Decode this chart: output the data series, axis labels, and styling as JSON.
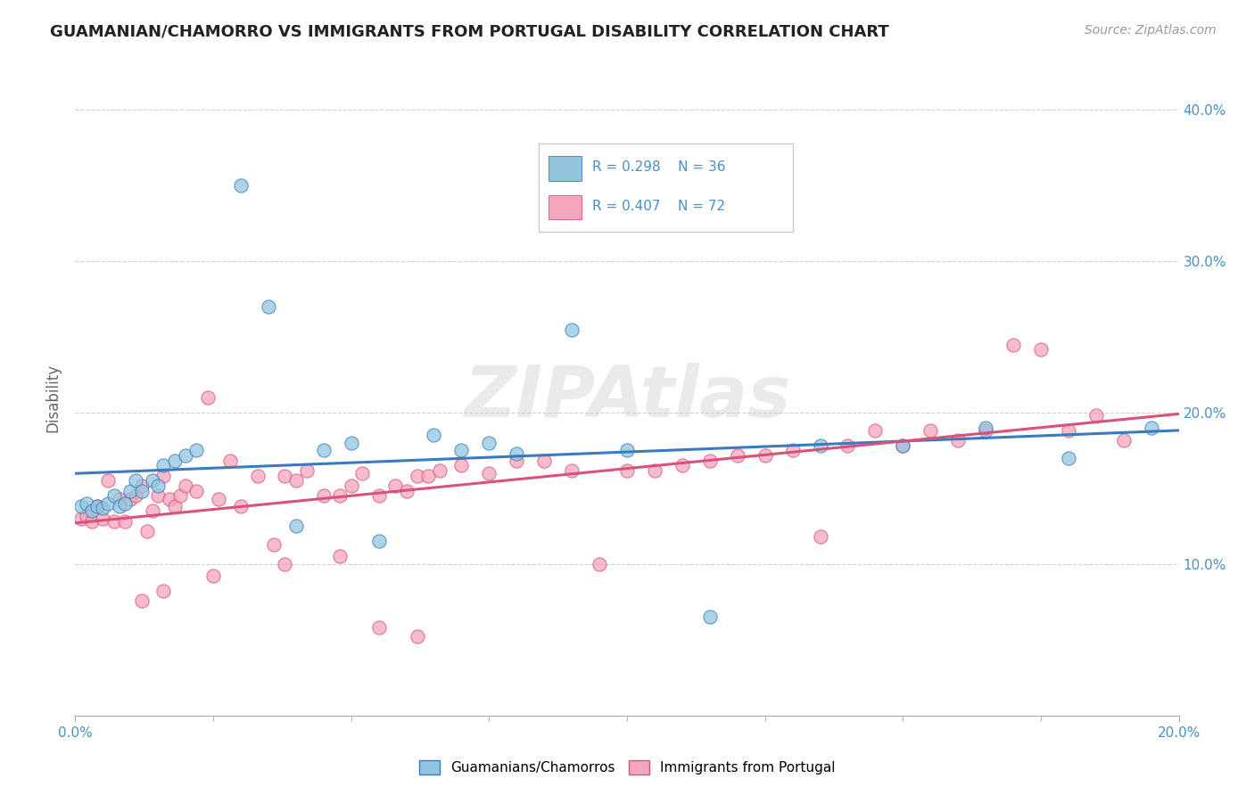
{
  "title": "GUAMANIAN/CHAMORRO VS IMMIGRANTS FROM PORTUGAL DISABILITY CORRELATION CHART",
  "source": "Source: ZipAtlas.com",
  "ylabel_label": "Disability",
  "xlim": [
    0.0,
    0.2
  ],
  "ylim": [
    0.0,
    0.42
  ],
  "xticks_major": [
    0.0,
    0.2
  ],
  "xticks_minor": [
    0.025,
    0.05,
    0.075,
    0.1,
    0.125,
    0.15,
    0.175
  ],
  "yticks": [
    0.1,
    0.2,
    0.3,
    0.4
  ],
  "ytick_labels": [
    "10.0%",
    "20.0%",
    "30.0%",
    "40.0%"
  ],
  "xtick_labels_major": [
    "0.0%",
    "20.0%"
  ],
  "legend_R1": "R = 0.298",
  "legend_N1": "N = 36",
  "legend_R2": "R = 0.407",
  "legend_N2": "N = 72",
  "color_blue": "#92c5de",
  "color_pink": "#f4a6bc",
  "line_blue": "#3a7abf",
  "line_pink": "#d9527a",
  "text_color": "#4a90c4",
  "watermark": "ZIPAtlas",
  "blue_scatter_x": [
    0.001,
    0.002,
    0.003,
    0.004,
    0.005,
    0.006,
    0.007,
    0.008,
    0.009,
    0.01,
    0.011,
    0.012,
    0.014,
    0.015,
    0.016,
    0.018,
    0.02,
    0.022,
    0.03,
    0.035,
    0.04,
    0.045,
    0.05,
    0.055,
    0.065,
    0.07,
    0.075,
    0.08,
    0.09,
    0.1,
    0.115,
    0.135,
    0.15,
    0.165,
    0.18,
    0.195
  ],
  "blue_scatter_y": [
    0.138,
    0.14,
    0.135,
    0.138,
    0.137,
    0.14,
    0.145,
    0.138,
    0.14,
    0.148,
    0.155,
    0.148,
    0.155,
    0.152,
    0.165,
    0.168,
    0.172,
    0.175,
    0.35,
    0.27,
    0.125,
    0.175,
    0.18,
    0.115,
    0.185,
    0.175,
    0.18,
    0.173,
    0.255,
    0.175,
    0.065,
    0.178,
    0.178,
    0.19,
    0.17,
    0.19
  ],
  "pink_scatter_x": [
    0.001,
    0.002,
    0.003,
    0.004,
    0.005,
    0.006,
    0.007,
    0.008,
    0.009,
    0.01,
    0.011,
    0.012,
    0.013,
    0.014,
    0.015,
    0.016,
    0.017,
    0.018,
    0.019,
    0.02,
    0.022,
    0.024,
    0.026,
    0.028,
    0.03,
    0.033,
    0.036,
    0.038,
    0.04,
    0.042,
    0.045,
    0.048,
    0.05,
    0.052,
    0.055,
    0.058,
    0.06,
    0.062,
    0.064,
    0.066,
    0.07,
    0.075,
    0.08,
    0.085,
    0.09,
    0.095,
    0.1,
    0.105,
    0.11,
    0.115,
    0.12,
    0.125,
    0.13,
    0.135,
    0.14,
    0.145,
    0.15,
    0.155,
    0.16,
    0.165,
    0.17,
    0.175,
    0.18,
    0.185,
    0.19,
    0.012,
    0.016,
    0.025,
    0.038,
    0.048,
    0.055,
    0.062
  ],
  "pink_scatter_y": [
    0.13,
    0.132,
    0.128,
    0.138,
    0.13,
    0.155,
    0.128,
    0.143,
    0.128,
    0.143,
    0.145,
    0.152,
    0.122,
    0.135,
    0.145,
    0.158,
    0.143,
    0.138,
    0.145,
    0.152,
    0.148,
    0.21,
    0.143,
    0.168,
    0.138,
    0.158,
    0.113,
    0.158,
    0.155,
    0.162,
    0.145,
    0.145,
    0.152,
    0.16,
    0.145,
    0.152,
    0.148,
    0.158,
    0.158,
    0.162,
    0.165,
    0.16,
    0.168,
    0.168,
    0.162,
    0.1,
    0.162,
    0.162,
    0.165,
    0.168,
    0.172,
    0.172,
    0.175,
    0.118,
    0.178,
    0.188,
    0.178,
    0.188,
    0.182,
    0.188,
    0.245,
    0.242,
    0.188,
    0.198,
    0.182,
    0.076,
    0.082,
    0.092,
    0.1,
    0.105,
    0.058,
    0.052
  ]
}
